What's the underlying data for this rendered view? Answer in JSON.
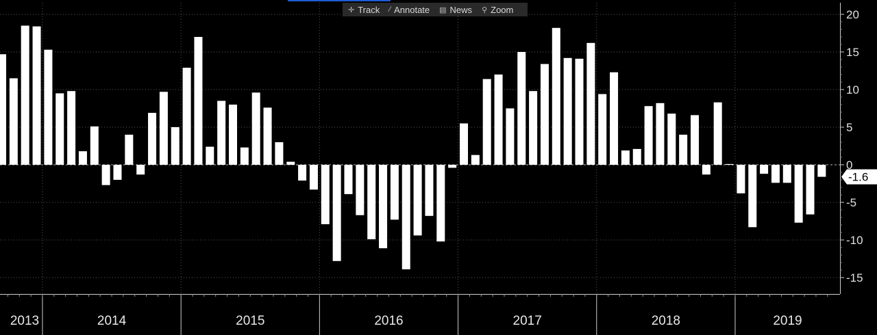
{
  "toolbar": {
    "items": [
      {
        "label": "Track",
        "icon": "crosshair-icon"
      },
      {
        "label": "Annotate",
        "icon": "pencil-icon"
      },
      {
        "label": "News",
        "icon": "newspaper-icon"
      },
      {
        "label": "Zoom",
        "icon": "magnifier-icon"
      }
    ]
  },
  "chart_data": {
    "type": "bar",
    "ylim": [
      -17,
      21
    ],
    "yticks": [
      20,
      15,
      10,
      5,
      0,
      -5,
      -10,
      -15
    ],
    "ytick_labels": [
      "20",
      "15",
      "10",
      "5",
      "0",
      "-5",
      "-10",
      "-15"
    ],
    "year_labels": [
      "2013",
      "2014",
      "2015",
      "2016",
      "2017",
      "2018",
      "2019"
    ],
    "last_value_label": "-1.6",
    "bar_color": "#ffffff",
    "background": "#000000",
    "grid": true,
    "values": [
      14.7,
      11.5,
      18.5,
      18.4,
      15.3,
      9.5,
      9.8,
      1.8,
      5.1,
      -2.7,
      -2.0,
      4.0,
      -1.3,
      6.9,
      9.7,
      5.0,
      12.9,
      17.0,
      2.4,
      8.5,
      8.0,
      2.3,
      9.6,
      7.6,
      3.0,
      0.4,
      -2.1,
      -3.3,
      -7.9,
      -12.8,
      -3.9,
      -6.7,
      -9.9,
      -11.1,
      -7.3,
      -13.9,
      -9.4,
      -6.8,
      -10.2,
      -0.4,
      5.5,
      1.3,
      11.4,
      12.0,
      7.5,
      15.0,
      9.8,
      13.4,
      18.2,
      14.2,
      14.1,
      16.2,
      9.4,
      12.3,
      1.9,
      2.1,
      7.8,
      8.2,
      6.8,
      4.0,
      6.6,
      -1.3,
      8.3,
      0.1,
      -3.8,
      -8.3,
      -1.2,
      -2.4,
      -2.4,
      -7.7,
      -6.6,
      -1.6
    ]
  }
}
